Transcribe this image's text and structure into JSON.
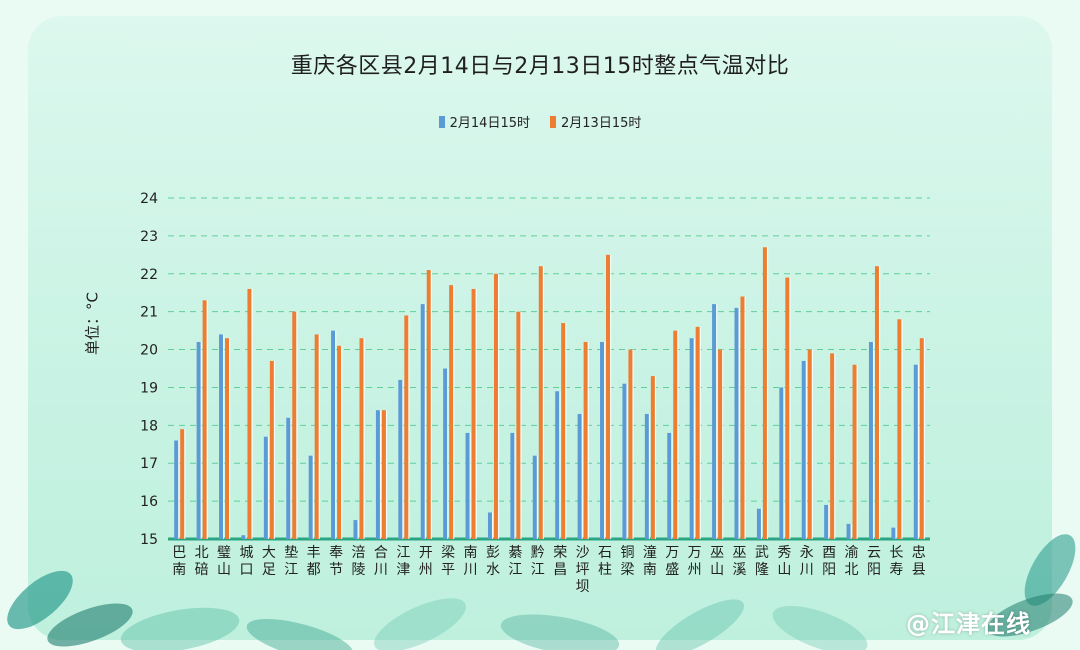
{
  "chart_data": {
    "type": "bar",
    "title": "重庆各区县2月14日与2月13日15时整点气温对比",
    "ylabel": "单位：°C",
    "ylim": [
      15,
      24
    ],
    "yticks": [
      15,
      16,
      17,
      18,
      19,
      20,
      21,
      22,
      23,
      24
    ],
    "grid": true,
    "legend_position": "top",
    "categories": [
      "巴南",
      "北碚",
      "璧山",
      "城口",
      "大足",
      "垫江",
      "丰都",
      "奉节",
      "涪陵",
      "合川",
      "江津",
      "开州",
      "梁平",
      "南川",
      "彭水",
      "綦江",
      "黔江",
      "荣昌",
      "沙坪坝",
      "石柱",
      "铜梁",
      "潼南",
      "万盛",
      "万州",
      "巫山",
      "巫溪",
      "武隆",
      "秀山",
      "永川",
      "酉阳",
      "渝北",
      "云阳",
      "长寿",
      "忠县"
    ],
    "series": [
      {
        "name": "2月14日15时",
        "color": "#5b9bd5",
        "values": [
          17.6,
          20.2,
          20.4,
          15.1,
          17.7,
          18.2,
          17.2,
          20.5,
          15.5,
          18.4,
          19.2,
          21.2,
          19.5,
          17.8,
          15.7,
          17.8,
          17.2,
          18.9,
          18.3,
          20.2,
          19.1,
          18.3,
          17.8,
          20.3,
          21.2,
          21.1,
          15.8,
          19.0,
          19.7,
          15.9,
          15.4,
          20.2,
          15.3,
          19.6
        ]
      },
      {
        "name": "2月13日15时",
        "color": "#ed7d31",
        "values": [
          17.9,
          21.3,
          20.3,
          21.6,
          19.7,
          21.0,
          20.4,
          20.1,
          20.3,
          18.4,
          20.9,
          22.1,
          21.7,
          21.6,
          22.0,
          21.0,
          22.2,
          20.7,
          20.2,
          22.5,
          20.0,
          19.3,
          20.5,
          20.6,
          20.0,
          21.4,
          22.7,
          21.9,
          20.0,
          19.9,
          19.6,
          22.2,
          20.8,
          20.3
        ]
      }
    ]
  },
  "watermark": "@江津在线",
  "colors": {
    "grid": "#5fcf9a",
    "axis": "#2aa582"
  }
}
